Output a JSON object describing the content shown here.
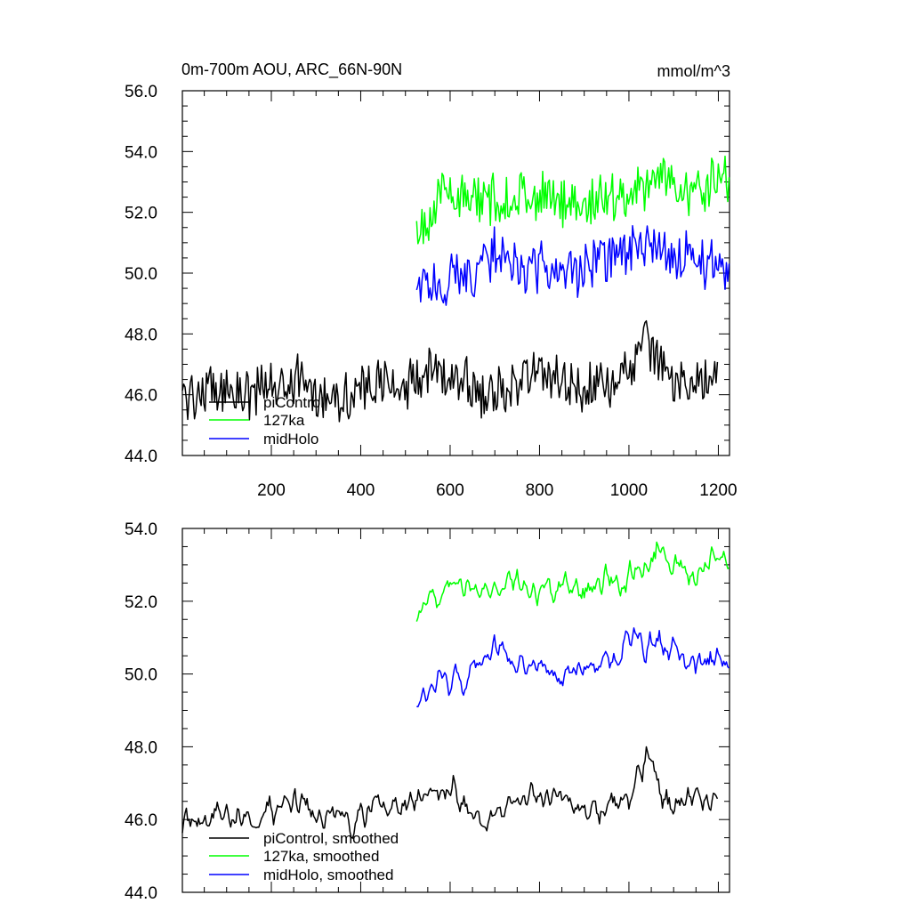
{
  "chart_data": [
    {
      "type": "line",
      "title": "0m-700m AOU, ARC_66N-90N",
      "units": "mmol/m^3",
      "xlim": [
        1,
        1225
      ],
      "ylim": [
        44.0,
        56.0
      ],
      "xticks": [
        200,
        400,
        600,
        800,
        1000,
        1200
      ],
      "yticks": [
        "44.0",
        "46.0",
        "48.0",
        "50.0",
        "52.0",
        "54.0",
        "56.0"
      ],
      "legend_position": "bottom-left",
      "series": [
        {
          "name": "piControl",
          "color": "#000000",
          "x_start": 1,
          "x_end": 1200,
          "x": [
            1,
            50,
            100,
            150,
            200,
            250,
            300,
            350,
            400,
            450,
            500,
            550,
            600,
            650,
            680,
            700,
            750,
            800,
            850,
            900,
            950,
            1000,
            1040,
            1060,
            1080,
            1100,
            1150,
            1200
          ],
          "y": [
            46.0,
            46.1,
            46.2,
            46.0,
            46.3,
            46.5,
            46.1,
            46.0,
            46.1,
            46.4,
            46.3,
            46.6,
            46.8,
            46.3,
            45.7,
            46.0,
            46.5,
            46.7,
            46.5,
            46.2,
            46.4,
            46.7,
            47.8,
            47.3,
            46.6,
            46.4,
            46.6,
            46.4
          ]
        },
        {
          "name": "127ka",
          "color": "#00ff00",
          "x_start": 525,
          "x_end": 1225,
          "x": [
            525,
            550,
            600,
            650,
            700,
            750,
            800,
            850,
            900,
            950,
            1000,
            1050,
            1065,
            1100,
            1150,
            1200,
            1225
          ],
          "y": [
            51.4,
            51.9,
            52.8,
            52.3,
            52.4,
            52.6,
            52.4,
            52.4,
            52.3,
            52.5,
            52.6,
            53.0,
            53.4,
            52.9,
            52.6,
            53.2,
            53.1
          ]
        },
        {
          "name": "midHolo",
          "color": "#0000ff",
          "x_start": 525,
          "x_end": 1225,
          "x": [
            525,
            550,
            600,
            650,
            700,
            720,
            750,
            800,
            850,
            900,
            950,
            1000,
            1050,
            1100,
            1150,
            1200,
            1225
          ],
          "y": [
            49.4,
            49.6,
            49.8,
            50.0,
            50.7,
            50.6,
            50.0,
            50.2,
            49.9,
            50.2,
            50.4,
            50.7,
            50.8,
            50.6,
            50.4,
            50.4,
            50.3
          ]
        }
      ]
    },
    {
      "type": "line",
      "title": "",
      "xlim": [
        1,
        1225
      ],
      "ylim": [
        44.0,
        54.0
      ],
      "yticks": [
        "44.0",
        "46.0",
        "48.0",
        "50.0",
        "52.0",
        "54.0"
      ],
      "legend_position": "bottom-left",
      "series": [
        {
          "name": "piControl, smoothed",
          "color": "#000000",
          "x_start": 1,
          "x_end": 1200,
          "x": [
            1,
            50,
            100,
            150,
            200,
            250,
            300,
            350,
            400,
            450,
            500,
            550,
            600,
            650,
            680,
            700,
            750,
            800,
            850,
            900,
            950,
            1000,
            1040,
            1060,
            1080,
            1100,
            1150,
            1200
          ],
          "y": [
            46.0,
            46.1,
            46.2,
            46.0,
            46.3,
            46.5,
            46.1,
            46.0,
            46.1,
            46.4,
            46.3,
            46.6,
            46.8,
            46.3,
            45.7,
            46.0,
            46.5,
            46.7,
            46.5,
            46.2,
            46.4,
            46.7,
            47.7,
            47.3,
            46.6,
            46.4,
            46.6,
            46.4
          ]
        },
        {
          "name": "127ka, smoothed",
          "color": "#00ff00",
          "x_start": 525,
          "x_end": 1225,
          "x": [
            525,
            550,
            600,
            650,
            700,
            750,
            800,
            850,
            900,
            950,
            1000,
            1050,
            1065,
            1100,
            1150,
            1200,
            1225
          ],
          "y": [
            51.5,
            51.9,
            52.8,
            52.4,
            52.4,
            52.5,
            52.4,
            52.4,
            52.3,
            52.5,
            52.6,
            53.0,
            53.5,
            52.9,
            52.6,
            53.2,
            53.1
          ]
        },
        {
          "name": "midHolo, smoothed",
          "color": "#0000ff",
          "x_start": 525,
          "x_end": 1225,
          "x": [
            525,
            550,
            600,
            650,
            700,
            720,
            750,
            800,
            850,
            900,
            950,
            1000,
            1050,
            1100,
            1150,
            1200,
            1225
          ],
          "y": [
            49.4,
            49.6,
            49.8,
            50.0,
            50.7,
            50.7,
            50.0,
            50.2,
            49.9,
            50.2,
            50.4,
            50.8,
            50.8,
            50.6,
            50.4,
            50.4,
            50.3
          ]
        }
      ]
    }
  ]
}
